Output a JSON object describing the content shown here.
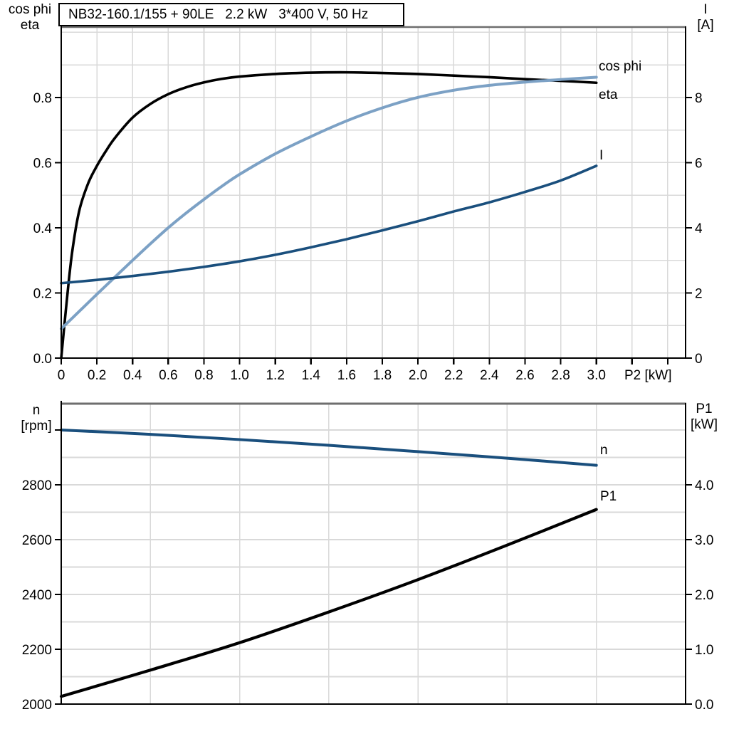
{
  "chart_data": [
    {
      "type": "line",
      "panel": "top",
      "title": "NB32-160.1/155 + 90LE   2.2 kW   3*400 V, 50 Hz",
      "xlabel": "P2 [kW]",
      "x_range": [
        0,
        3.5
      ],
      "grid": "on",
      "x_tick_values": [
        0,
        0.2,
        0.4,
        0.6,
        0.8,
        1.0,
        1.2,
        1.4,
        1.6,
        1.8,
        2.0,
        2.2,
        2.4,
        2.6,
        2.8,
        3.0,
        3.2,
        3.4
      ],
      "x_tick_labels": [
        "0",
        "0.2",
        "0.4",
        "0.6",
        "0.8",
        "1.0",
        "1.2",
        "1.4",
        "1.6",
        "1.8",
        "2.0",
        "2.2",
        "2.4",
        "2.6",
        "2.8",
        "3.0",
        "",
        ""
      ],
      "left_axis": {
        "title_lines": [
          "cos phi",
          "eta"
        ],
        "range": [
          0,
          1.016
        ],
        "tick_values": [
          0,
          0.2,
          0.4,
          0.6,
          0.8
        ],
        "tick_labels": [
          "0.0",
          "0.2",
          "0.4",
          "0.6",
          "0.8"
        ]
      },
      "right_axis": {
        "title_lines": [
          "I",
          "[A]"
        ],
        "range": [
          0,
          10.16
        ],
        "tick_values": [
          0,
          2,
          4,
          6,
          8
        ],
        "tick_labels": [
          "0",
          "2",
          "4",
          "6",
          "8"
        ]
      },
      "series": [
        {
          "name": "eta",
          "axis": "left",
          "color": "#000000",
          "points": [
            [
              0,
              0
            ],
            [
              0.03,
              0.17
            ],
            [
              0.06,
              0.32
            ],
            [
              0.1,
              0.45
            ],
            [
              0.15,
              0.535
            ],
            [
              0.2,
              0.59
            ],
            [
              0.25,
              0.635
            ],
            [
              0.3,
              0.675
            ],
            [
              0.4,
              0.738
            ],
            [
              0.5,
              0.78
            ],
            [
              0.6,
              0.81
            ],
            [
              0.7,
              0.831
            ],
            [
              0.8,
              0.846
            ],
            [
              0.9,
              0.857
            ],
            [
              1.0,
              0.864
            ],
            [
              1.2,
              0.872
            ],
            [
              1.4,
              0.876
            ],
            [
              1.6,
              0.877
            ],
            [
              1.8,
              0.875
            ],
            [
              2.0,
              0.872
            ],
            [
              2.2,
              0.867
            ],
            [
              2.4,
              0.862
            ],
            [
              2.6,
              0.856
            ],
            [
              2.8,
              0.851
            ],
            [
              3.0,
              0.845
            ]
          ]
        },
        {
          "name": "cos phi",
          "axis": "left",
          "color": "#7CA1C5",
          "points": [
            [
              0,
              0.09
            ],
            [
              0.1,
              0.143
            ],
            [
              0.2,
              0.196
            ],
            [
              0.3,
              0.248
            ],
            [
              0.4,
              0.3
            ],
            [
              0.5,
              0.351
            ],
            [
              0.6,
              0.4
            ],
            [
              0.7,
              0.445
            ],
            [
              0.8,
              0.487
            ],
            [
              0.9,
              0.527
            ],
            [
              1.0,
              0.564
            ],
            [
              1.2,
              0.627
            ],
            [
              1.4,
              0.68
            ],
            [
              1.6,
              0.728
            ],
            [
              1.8,
              0.768
            ],
            [
              2.0,
              0.8
            ],
            [
              2.2,
              0.822
            ],
            [
              2.4,
              0.837
            ],
            [
              2.6,
              0.847
            ],
            [
              2.8,
              0.855
            ],
            [
              3.0,
              0.862
            ]
          ]
        },
        {
          "name": "I",
          "axis": "right",
          "color": "#1A4F7D",
          "points": [
            [
              0,
              2.3
            ],
            [
              0.2,
              2.4
            ],
            [
              0.4,
              2.52
            ],
            [
              0.6,
              2.65
            ],
            [
              0.8,
              2.8
            ],
            [
              1.0,
              2.97
            ],
            [
              1.2,
              3.17
            ],
            [
              1.4,
              3.4
            ],
            [
              1.6,
              3.65
            ],
            [
              1.8,
              3.92
            ],
            [
              2.0,
              4.2
            ],
            [
              2.2,
              4.5
            ],
            [
              2.4,
              4.78
            ],
            [
              2.6,
              5.1
            ],
            [
              2.8,
              5.45
            ],
            [
              3.0,
              5.9
            ]
          ]
        }
      ]
    },
    {
      "type": "line",
      "panel": "bottom",
      "title": "",
      "xlabel": "",
      "x_range": [
        0,
        3.5
      ],
      "grid": "on",
      "x_tick_values": [],
      "x_tick_labels": [],
      "left_axis": {
        "title_lines": [
          "n",
          "[rpm]"
        ],
        "range": [
          2000,
          3096
        ],
        "tick_values": [
          2000,
          2200,
          2400,
          2600,
          2800,
          3000
        ],
        "tick_labels": [
          "2000",
          "2200",
          "2400",
          "2600",
          "2800",
          ""
        ]
      },
      "right_axis": {
        "title_lines": [
          "P1",
          "[kW]"
        ],
        "range": [
          0,
          5.48
        ],
        "tick_values": [
          0,
          1,
          2,
          3,
          4
        ],
        "tick_labels": [
          "0.0",
          "1.0",
          "2.0",
          "3.0",
          "4.0"
        ]
      },
      "series": [
        {
          "name": "n",
          "axis": "left",
          "color": "#1A4F7D",
          "points": [
            [
              0,
              3000
            ],
            [
              0.5,
              2984
            ],
            [
              1.0,
              2965
            ],
            [
              1.5,
              2944
            ],
            [
              2.0,
              2921
            ],
            [
              2.5,
              2897
            ],
            [
              3.0,
              2871
            ]
          ]
        },
        {
          "name": "P1",
          "axis": "right",
          "color": "#000000",
          "points": [
            [
              0,
              0.14
            ],
            [
              0.5,
              0.62
            ],
            [
              1.0,
              1.12
            ],
            [
              1.5,
              1.68
            ],
            [
              2.0,
              2.27
            ],
            [
              2.5,
              2.9
            ],
            [
              3.0,
              3.55
            ]
          ]
        }
      ]
    }
  ],
  "colors": {
    "curve_black": "#000000",
    "curve_light_blue": "#7CA1C5",
    "curve_dark_blue": "#1A4F7D",
    "grid": "#D9D9D9",
    "frame_gray": "#6E6E6E"
  }
}
